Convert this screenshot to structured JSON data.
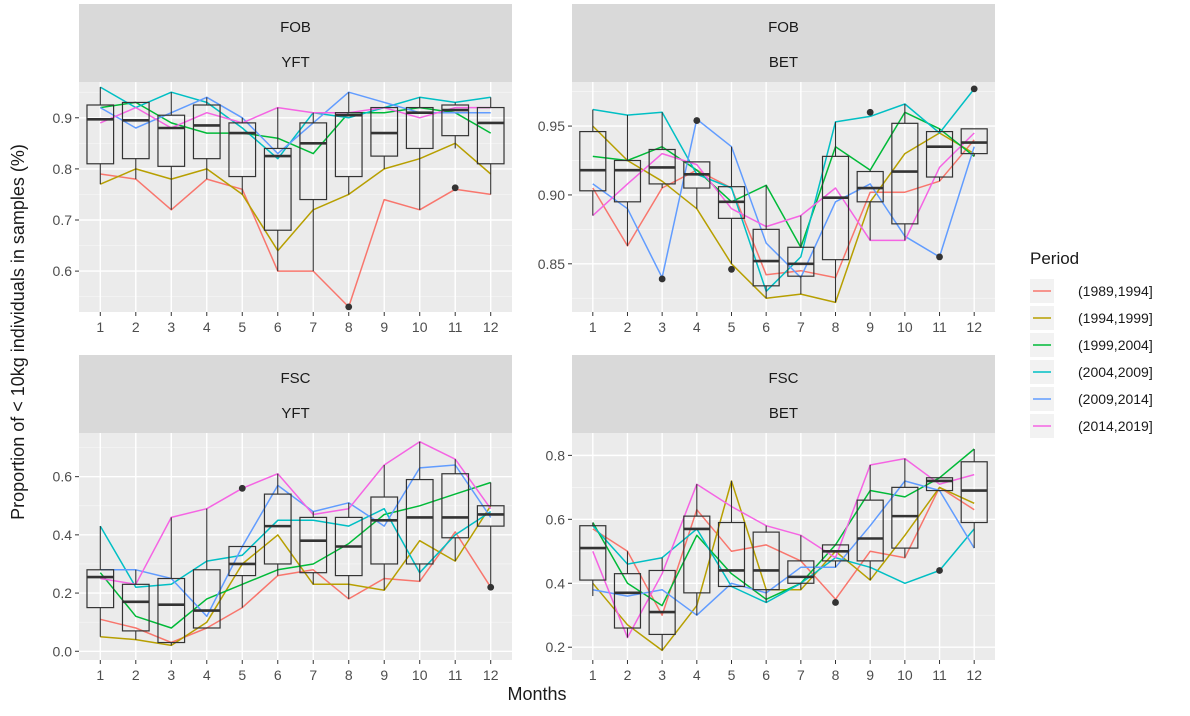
{
  "chart_data": {
    "type": "box+line",
    "xlabel": "Months",
    "ylabel": "Proportion of < 10kg individuals in samples (%)",
    "legend_title": "Period",
    "legend_position": "right",
    "grid": true,
    "series_names": [
      "(1989,1994]",
      "(1994,1999]",
      "(1999,2004]",
      "(2004,2009]",
      "(2009,2014]",
      "(2014,2019]"
    ],
    "series_colors": [
      "#F8766D",
      "#B79F00",
      "#00BA38",
      "#00BFC4",
      "#619CFF",
      "#F564E3"
    ],
    "x_ticks": [
      "1",
      "2",
      "3",
      "4",
      "5",
      "6",
      "7",
      "8",
      "9",
      "10",
      "11",
      "12"
    ],
    "panels": [
      {
        "strip_top": "FOB",
        "strip_bottom": "YFT",
        "ylim": [
          0.52,
          0.97
        ],
        "y_ticks": [
          0.6,
          0.7,
          0.8,
          0.9
        ],
        "y_tick_labels": [
          "0.6",
          "0.7",
          "0.8",
          "0.9"
        ],
        "series": [
          [
            0.79,
            0.78,
            0.72,
            0.78,
            0.76,
            0.6,
            0.6,
            0.53,
            0.74,
            0.72,
            0.76,
            0.75
          ],
          [
            0.77,
            0.8,
            0.78,
            0.8,
            0.75,
            0.64,
            0.72,
            0.75,
            0.8,
            0.82,
            0.85,
            0.79
          ],
          [
            0.92,
            0.93,
            0.89,
            0.87,
            0.87,
            0.86,
            0.83,
            0.91,
            0.91,
            0.92,
            0.91,
            0.87
          ],
          [
            0.96,
            0.92,
            0.95,
            0.93,
            0.88,
            0.82,
            0.91,
            0.9,
            0.92,
            0.94,
            0.93,
            0.94
          ],
          [
            0.92,
            0.88,
            0.91,
            0.94,
            0.9,
            0.83,
            0.89,
            0.95,
            0.93,
            0.91,
            0.91,
            0.91
          ],
          [
            0.89,
            0.92,
            0.88,
            0.91,
            0.89,
            0.92,
            0.91,
            0.91,
            0.92,
            0.9,
            0.92,
            0.92
          ]
        ],
        "boxes": [
          {
            "q1": 0.81,
            "med": 0.897,
            "q3": 0.925,
            "lo": 0.77,
            "hi": 0.96
          },
          {
            "q1": 0.82,
            "med": 0.895,
            "q3": 0.93,
            "lo": 0.78,
            "hi": 0.93
          },
          {
            "q1": 0.805,
            "med": 0.88,
            "q3": 0.905,
            "lo": 0.72,
            "hi": 0.95
          },
          {
            "q1": 0.82,
            "med": 0.885,
            "q3": 0.925,
            "lo": 0.78,
            "hi": 0.94
          },
          {
            "q1": 0.785,
            "med": 0.87,
            "q3": 0.89,
            "lo": 0.75,
            "hi": 0.9
          },
          {
            "q1": 0.68,
            "med": 0.825,
            "q3": 0.84,
            "lo": 0.6,
            "hi": 0.92
          },
          {
            "q1": 0.74,
            "med": 0.85,
            "q3": 0.89,
            "lo": 0.6,
            "hi": 0.91
          },
          {
            "q1": 0.785,
            "med": 0.905,
            "q3": 0.91,
            "lo": 0.75,
            "hi": 0.95
          },
          {
            "q1": 0.825,
            "med": 0.87,
            "q3": 0.92,
            "lo": 0.8,
            "hi": 0.92
          },
          {
            "q1": 0.84,
            "med": 0.91,
            "q3": 0.92,
            "lo": 0.72,
            "hi": 0.94
          },
          {
            "q1": 0.865,
            "med": 0.915,
            "q3": 0.925,
            "lo": 0.84,
            "hi": 0.93
          },
          {
            "q1": 0.81,
            "med": 0.89,
            "q3": 0.92,
            "lo": 0.75,
            "hi": 0.94
          }
        ],
        "outliers": [
          {
            "x": 8,
            "y": 0.53
          },
          {
            "x": 11,
            "y": 0.763
          }
        ]
      },
      {
        "strip_top": "FOB",
        "strip_bottom": "BET",
        "ylim": [
          0.815,
          0.982
        ],
        "y_ticks": [
          0.85,
          0.9,
          0.95
        ],
        "y_tick_labels": [
          "0.85",
          "0.90",
          "0.95"
        ],
        "series": [
          [
            0.905,
            0.863,
            0.905,
            0.918,
            0.905,
            0.842,
            0.845,
            0.84,
            0.902,
            0.902,
            0.91,
            0.94
          ],
          [
            0.95,
            0.925,
            0.91,
            0.89,
            0.85,
            0.825,
            0.828,
            0.822,
            0.895,
            0.93,
            0.945,
            0.93
          ],
          [
            0.928,
            0.925,
            0.935,
            0.918,
            0.895,
            0.907,
            0.862,
            0.935,
            0.918,
            0.96,
            0.948,
            0.928
          ],
          [
            0.962,
            0.958,
            0.96,
            0.915,
            0.905,
            0.83,
            0.855,
            0.953,
            0.957,
            0.966,
            0.945,
            0.977
          ],
          [
            0.908,
            0.89,
            0.84,
            0.955,
            0.935,
            0.865,
            0.84,
            0.895,
            0.908,
            0.87,
            0.855,
            0.935
          ],
          [
            0.885,
            0.908,
            0.93,
            0.922,
            0.89,
            0.877,
            0.885,
            0.905,
            0.867,
            0.867,
            0.92,
            0.945
          ]
        ],
        "boxes": [
          {
            "q1": 0.903,
            "med": 0.918,
            "q3": 0.946,
            "lo": 0.885,
            "hi": 0.962
          },
          {
            "q1": 0.895,
            "med": 0.918,
            "q3": 0.925,
            "lo": 0.863,
            "hi": 0.958
          },
          {
            "q1": 0.908,
            "med": 0.92,
            "q3": 0.933,
            "lo": 0.905,
            "hi": 0.96
          },
          {
            "q1": 0.905,
            "med": 0.915,
            "q3": 0.924,
            "lo": 0.89,
            "hi": 0.924
          },
          {
            "q1": 0.883,
            "med": 0.895,
            "q3": 0.906,
            "lo": 0.85,
            "hi": 0.935
          },
          {
            "q1": 0.834,
            "med": 0.852,
            "q3": 0.875,
            "lo": 0.825,
            "hi": 0.907
          },
          {
            "q1": 0.841,
            "med": 0.85,
            "q3": 0.862,
            "lo": 0.828,
            "hi": 0.885
          },
          {
            "q1": 0.853,
            "med": 0.898,
            "q3": 0.928,
            "lo": 0.822,
            "hi": 0.953
          },
          {
            "q1": 0.895,
            "med": 0.905,
            "q3": 0.917,
            "lo": 0.867,
            "hi": 0.918
          },
          {
            "q1": 0.879,
            "med": 0.917,
            "q3": 0.952,
            "lo": 0.867,
            "hi": 0.966
          },
          {
            "q1": 0.913,
            "med": 0.935,
            "q3": 0.946,
            "lo": 0.91,
            "hi": 0.948
          },
          {
            "q1": 0.93,
            "med": 0.938,
            "q3": 0.948,
            "lo": 0.928,
            "hi": 0.948
          }
        ],
        "outliers": [
          {
            "x": 3,
            "y": 0.839
          },
          {
            "x": 4,
            "y": 0.954
          },
          {
            "x": 5,
            "y": 0.846
          },
          {
            "x": 9,
            "y": 0.96
          },
          {
            "x": 11,
            "y": 0.855
          },
          {
            "x": 12,
            "y": 0.977
          }
        ]
      },
      {
        "strip_top": "FSC",
        "strip_bottom": "YFT",
        "ylim": [
          -0.03,
          0.75
        ],
        "y_ticks": [
          0.0,
          0.2,
          0.4,
          0.6
        ],
        "y_tick_labels": [
          "0.0",
          "0.2",
          "0.4",
          "0.6"
        ],
        "series": [
          [
            0.11,
            0.08,
            0.03,
            0.08,
            0.15,
            0.26,
            0.28,
            0.18,
            0.25,
            0.24,
            0.41,
            0.22
          ],
          [
            0.05,
            0.04,
            0.02,
            0.1,
            0.3,
            0.4,
            0.23,
            0.23,
            0.21,
            0.38,
            0.31,
            0.5
          ],
          [
            0.27,
            0.12,
            0.08,
            0.18,
            0.23,
            0.28,
            0.3,
            0.37,
            0.47,
            0.5,
            0.54,
            0.58
          ],
          [
            0.43,
            0.22,
            0.23,
            0.31,
            0.33,
            0.45,
            0.45,
            0.43,
            0.49,
            0.27,
            0.4,
            0.48
          ],
          [
            0.28,
            0.28,
            0.25,
            0.12,
            0.36,
            0.57,
            0.48,
            0.51,
            0.43,
            0.63,
            0.64,
            0.46
          ],
          [
            0.25,
            0.23,
            0.46,
            0.49,
            0.56,
            0.61,
            0.47,
            0.49,
            0.64,
            0.72,
            0.66,
            0.49
          ]
        ],
        "boxes": [
          {
            "q1": 0.15,
            "med": 0.255,
            "q3": 0.28,
            "lo": 0.05,
            "hi": 0.43
          },
          {
            "q1": 0.07,
            "med": 0.17,
            "q3": 0.23,
            "lo": 0.04,
            "hi": 0.28
          },
          {
            "q1": 0.03,
            "med": 0.16,
            "q3": 0.25,
            "lo": 0.02,
            "hi": 0.46
          },
          {
            "q1": 0.08,
            "med": 0.14,
            "q3": 0.28,
            "lo": 0.08,
            "hi": 0.49
          },
          {
            "q1": 0.26,
            "med": 0.3,
            "q3": 0.36,
            "lo": 0.15,
            "hi": 0.36
          },
          {
            "q1": 0.3,
            "med": 0.43,
            "q3": 0.54,
            "lo": 0.26,
            "hi": 0.61
          },
          {
            "q1": 0.27,
            "med": 0.38,
            "q3": 0.46,
            "lo": 0.23,
            "hi": 0.48
          },
          {
            "q1": 0.26,
            "med": 0.36,
            "q3": 0.46,
            "lo": 0.18,
            "hi": 0.51
          },
          {
            "q1": 0.3,
            "med": 0.45,
            "q3": 0.53,
            "lo": 0.21,
            "hi": 0.64
          },
          {
            "q1": 0.3,
            "med": 0.46,
            "q3": 0.59,
            "lo": 0.24,
            "hi": 0.72
          },
          {
            "q1": 0.39,
            "med": 0.46,
            "q3": 0.61,
            "lo": 0.31,
            "hi": 0.66
          },
          {
            "q1": 0.43,
            "med": 0.47,
            "q3": 0.5,
            "lo": 0.22,
            "hi": 0.58
          }
        ],
        "outliers": [
          {
            "x": 5,
            "y": 0.56
          },
          {
            "x": 12,
            "y": 0.22
          }
        ]
      },
      {
        "strip_top": "FSC",
        "strip_bottom": "BET",
        "ylim": [
          0.16,
          0.87
        ],
        "y_ticks": [
          0.2,
          0.4,
          0.6,
          0.8
        ],
        "y_tick_labels": [
          "0.2",
          "0.4",
          "0.6",
          "0.8"
        ],
        "series": [
          [
            0.57,
            0.5,
            0.3,
            0.63,
            0.5,
            0.52,
            0.47,
            0.35,
            0.5,
            0.48,
            0.7,
            0.63
          ],
          [
            0.4,
            0.27,
            0.19,
            0.33,
            0.72,
            0.38,
            0.38,
            0.5,
            0.41,
            0.55,
            0.7,
            0.65
          ],
          [
            0.59,
            0.4,
            0.33,
            0.55,
            0.43,
            0.35,
            0.4,
            0.52,
            0.69,
            0.67,
            0.73,
            0.82
          ],
          [
            0.58,
            0.46,
            0.48,
            0.57,
            0.39,
            0.34,
            0.4,
            0.48,
            0.45,
            0.4,
            0.44,
            0.57
          ],
          [
            0.38,
            0.36,
            0.38,
            0.3,
            0.4,
            0.37,
            0.45,
            0.45,
            0.58,
            0.72,
            0.69,
            0.51
          ],
          [
            0.5,
            0.23,
            0.43,
            0.71,
            0.64,
            0.58,
            0.55,
            0.48,
            0.77,
            0.79,
            0.71,
            0.74
          ]
        ],
        "boxes": [
          {
            "q1": 0.41,
            "med": 0.51,
            "q3": 0.58,
            "lo": 0.36,
            "hi": 0.59
          },
          {
            "q1": 0.26,
            "med": 0.37,
            "q3": 0.43,
            "lo": 0.23,
            "hi": 0.5
          },
          {
            "q1": 0.24,
            "med": 0.31,
            "q3": 0.44,
            "lo": 0.19,
            "hi": 0.48
          },
          {
            "q1": 0.37,
            "med": 0.57,
            "q3": 0.61,
            "lo": 0.3,
            "hi": 0.71
          },
          {
            "q1": 0.39,
            "med": 0.44,
            "q3": 0.59,
            "lo": 0.39,
            "hi": 0.72
          },
          {
            "q1": 0.38,
            "med": 0.44,
            "q3": 0.56,
            "lo": 0.34,
            "hi": 0.58
          },
          {
            "q1": 0.4,
            "med": 0.42,
            "q3": 0.47,
            "lo": 0.38,
            "hi": 0.55
          },
          {
            "q1": 0.47,
            "med": 0.5,
            "q3": 0.52,
            "lo": 0.45,
            "hi": 0.52
          },
          {
            "q1": 0.47,
            "med": 0.54,
            "q3": 0.66,
            "lo": 0.41,
            "hi": 0.77
          },
          {
            "q1": 0.51,
            "med": 0.61,
            "q3": 0.7,
            "lo": 0.48,
            "hi": 0.79
          },
          {
            "q1": 0.69,
            "med": 0.72,
            "q3": 0.73,
            "lo": 0.69,
            "hi": 0.73
          },
          {
            "q1": 0.59,
            "med": 0.69,
            "q3": 0.78,
            "lo": 0.51,
            "hi": 0.82
          }
        ],
        "outliers": [
          {
            "x": 8,
            "y": 0.34
          },
          {
            "x": 11,
            "y": 0.44
          }
        ]
      }
    ]
  }
}
